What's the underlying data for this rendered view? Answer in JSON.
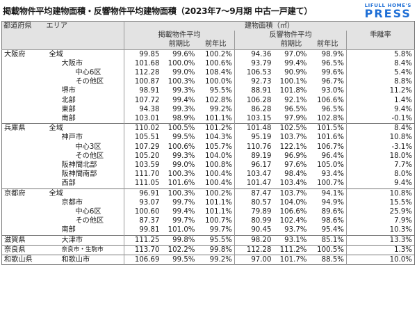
{
  "title": "掲載物件平均建物面積・反響物件平均建物面積（2023年7〜9月期 中古一戸建て）",
  "brand": {
    "top": "LIFULL HOME'S",
    "main": "PRESS",
    "color": "#1f6fd6"
  },
  "table": {
    "header": {
      "pref": "都道府県",
      "area": "エリア",
      "building_area": "建物面積（㎡）",
      "listed_avg": "掲載物件平均",
      "inquiry_avg": "反響物件平均",
      "gap": "乖離率",
      "qoq": "前期比",
      "yoy": "前年比"
    },
    "rows": [
      {
        "pref": "大阪府",
        "area": "全域",
        "indent": 0,
        "l": "99.85",
        "lq": "99.6%",
        "ly": "100.2%",
        "r": "94.36",
        "rq": "97.0%",
        "ry": "98.9%",
        "g": "5.8%"
      },
      {
        "pref": "",
        "area": "大阪市",
        "indent": 1,
        "l": "101.68",
        "lq": "100.0%",
        "ly": "100.6%",
        "r": "93.79",
        "rq": "99.4%",
        "ry": "96.5%",
        "g": "8.4%"
      },
      {
        "pref": "",
        "area": "中心6区",
        "indent": 2,
        "l": "112.28",
        "lq": "99.0%",
        "ly": "108.4%",
        "r": "106.53",
        "rq": "90.9%",
        "ry": "99.6%",
        "g": "5.4%"
      },
      {
        "pref": "",
        "area": "その他区",
        "indent": 2,
        "l": "100.87",
        "lq": "100.3%",
        "ly": "100.0%",
        "r": "92.73",
        "rq": "100.1%",
        "ry": "96.7%",
        "g": "8.8%"
      },
      {
        "pref": "",
        "area": "堺市",
        "indent": 1,
        "l": "98.91",
        "lq": "99.3%",
        "ly": "95.5%",
        "r": "88.91",
        "rq": "101.8%",
        "ry": "93.0%",
        "g": "11.2%"
      },
      {
        "pref": "",
        "area": "北部",
        "indent": 1,
        "l": "107.72",
        "lq": "99.4%",
        "ly": "102.8%",
        "r": "106.28",
        "rq": "92.1%",
        "ry": "106.6%",
        "g": "1.4%"
      },
      {
        "pref": "",
        "area": "東部",
        "indent": 1,
        "l": "94.38",
        "lq": "99.3%",
        "ly": "99.2%",
        "r": "86.28",
        "rq": "96.5%",
        "ry": "96.5%",
        "g": "9.4%"
      },
      {
        "pref": "",
        "area": "南部",
        "indent": 1,
        "l": "103.01",
        "lq": "98.9%",
        "ly": "101.1%",
        "r": "103.15",
        "rq": "97.9%",
        "ry": "102.8%",
        "g": "-0.1%"
      },
      {
        "pref": "兵庫県",
        "area": "全域",
        "indent": 0,
        "l": "110.02",
        "lq": "100.5%",
        "ly": "101.2%",
        "r": "101.48",
        "rq": "102.5%",
        "ry": "101.5%",
        "g": "8.4%"
      },
      {
        "pref": "",
        "area": "神戸市",
        "indent": 1,
        "l": "105.51",
        "lq": "99.5%",
        "ly": "104.3%",
        "r": "95.19",
        "rq": "103.7%",
        "ry": "101.6%",
        "g": "10.8%"
      },
      {
        "pref": "",
        "area": "中心3区",
        "indent": 2,
        "l": "107.29",
        "lq": "100.6%",
        "ly": "105.7%",
        "r": "110.76",
        "rq": "122.1%",
        "ry": "106.7%",
        "g": "-3.1%"
      },
      {
        "pref": "",
        "area": "その他区",
        "indent": 2,
        "l": "105.20",
        "lq": "99.3%",
        "ly": "104.0%",
        "r": "89.19",
        "rq": "96.9%",
        "ry": "96.4%",
        "g": "18.0%"
      },
      {
        "pref": "",
        "area": "阪神間北部",
        "indent": 1,
        "l": "103.59",
        "lq": "99.0%",
        "ly": "100.8%",
        "r": "96.17",
        "rq": "97.6%",
        "ry": "105.0%",
        "g": "7.7%"
      },
      {
        "pref": "",
        "area": "阪神間南部",
        "indent": 1,
        "l": "111.70",
        "lq": "100.3%",
        "ly": "100.4%",
        "r": "103.47",
        "rq": "98.4%",
        "ry": "93.4%",
        "g": "8.0%"
      },
      {
        "pref": "",
        "area": "西部",
        "indent": 1,
        "l": "111.05",
        "lq": "101.6%",
        "ly": "100.4%",
        "r": "101.47",
        "rq": "103.4%",
        "ry": "100.7%",
        "g": "9.4%"
      },
      {
        "pref": "京都府",
        "area": "全域",
        "indent": 0,
        "l": "96.91",
        "lq": "100.3%",
        "ly": "100.2%",
        "r": "87.47",
        "rq": "103.7%",
        "ry": "94.1%",
        "g": "10.8%"
      },
      {
        "pref": "",
        "area": "京都市",
        "indent": 1,
        "l": "93.07",
        "lq": "99.7%",
        "ly": "101.1%",
        "r": "80.57",
        "rq": "104.0%",
        "ry": "94.9%",
        "g": "15.5%"
      },
      {
        "pref": "",
        "area": "中心6区",
        "indent": 2,
        "l": "100.60",
        "lq": "99.4%",
        "ly": "101.1%",
        "r": "79.89",
        "rq": "106.6%",
        "ry": "89.6%",
        "g": "25.9%"
      },
      {
        "pref": "",
        "area": "その他区",
        "indent": 2,
        "l": "87.37",
        "lq": "99.7%",
        "ly": "100.7%",
        "r": "80.99",
        "rq": "102.4%",
        "ry": "98.6%",
        "g": "7.9%"
      },
      {
        "pref": "",
        "area": "南部",
        "indent": 1,
        "l": "99.81",
        "lq": "101.0%",
        "ly": "99.7%",
        "r": "90.45",
        "rq": "93.7%",
        "ry": "95.4%",
        "g": "10.3%"
      },
      {
        "pref": "滋賀県",
        "area": "大津市",
        "indent": 1,
        "l": "111.25",
        "lq": "99.8%",
        "ly": "95.5%",
        "r": "98.20",
        "rq": "93.1%",
        "ry": "85.1%",
        "g": "13.3%"
      },
      {
        "pref": "奈良県",
        "area": "奈良市・生駒市",
        "indent": 1,
        "small": true,
        "l": "113.70",
        "lq": "102.2%",
        "ly": "99.8%",
        "r": "112.28",
        "rq": "111.2%",
        "ry": "100.5%",
        "g": "1.3%"
      },
      {
        "pref": "和歌山県",
        "area": "和歌山市",
        "indent": 1,
        "l": "106.69",
        "lq": "99.5%",
        "ly": "99.2%",
        "r": "97.00",
        "rq": "101.7%",
        "ry": "88.5%",
        "g": "10.0%"
      }
    ]
  }
}
